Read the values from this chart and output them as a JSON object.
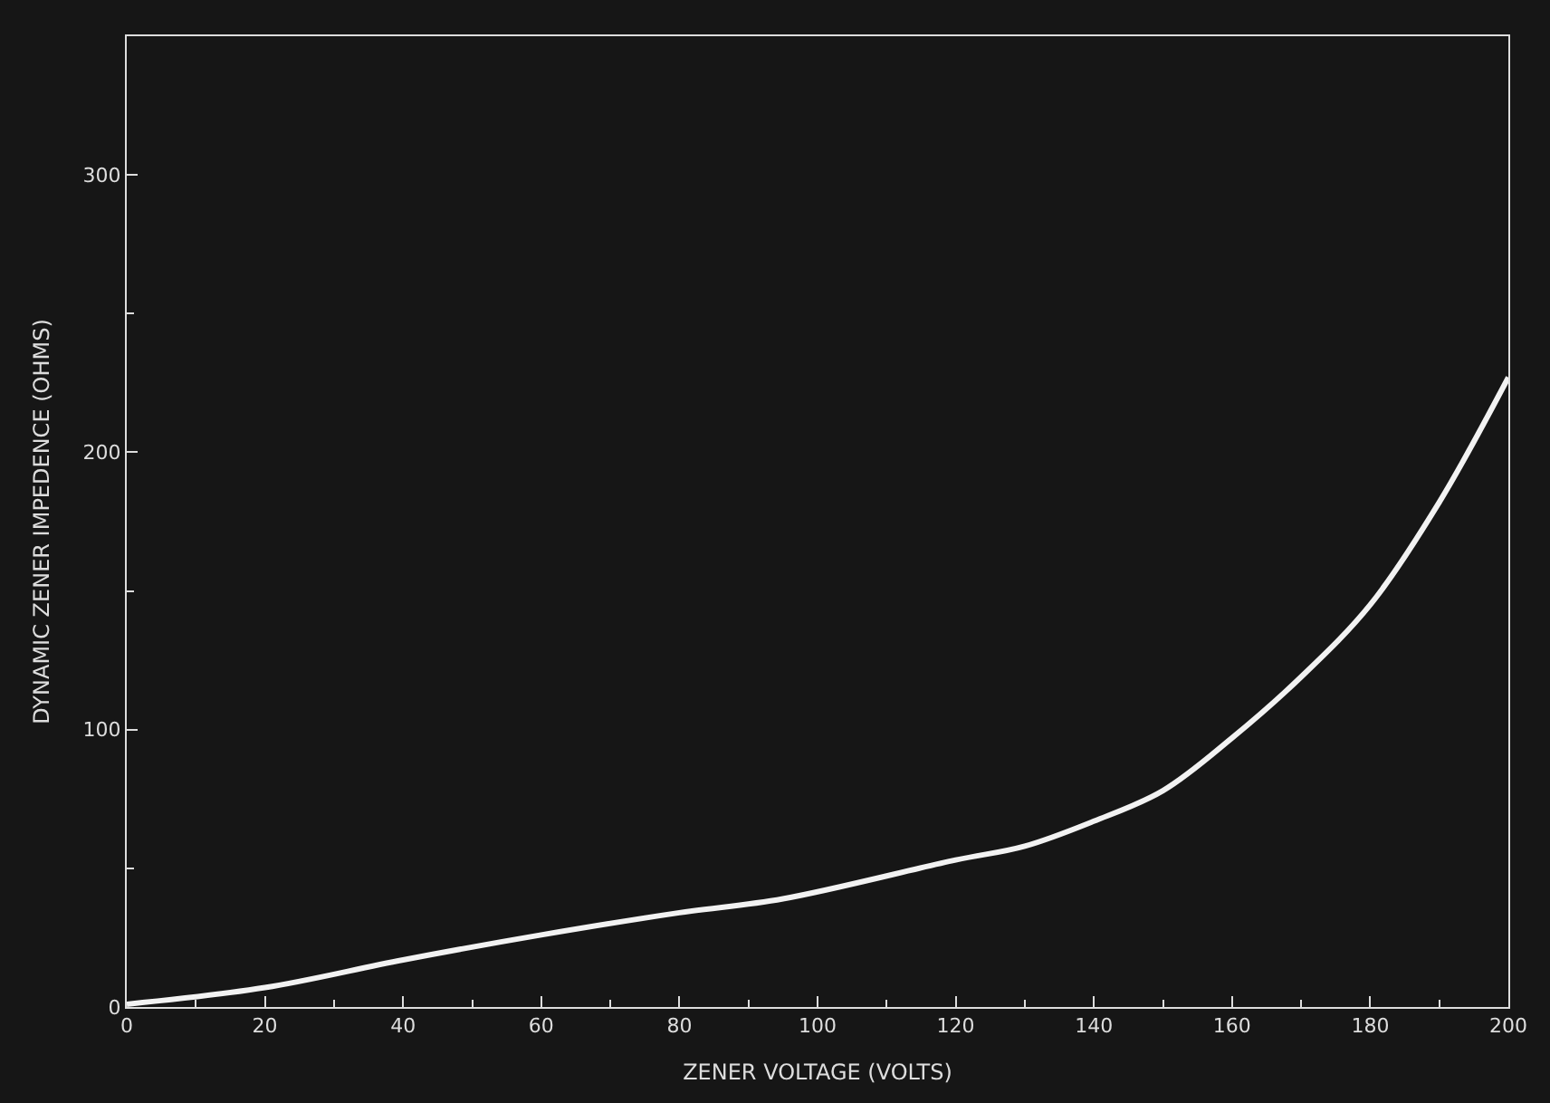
{
  "chart_data": {
    "type": "line",
    "xlabel": "ZENER VOLTAGE (VOLTS)",
    "ylabel": "DYNAMIC ZENER IMPEDENCE (OHMS)",
    "x": [
      0,
      20,
      40,
      60,
      80,
      95,
      120,
      130,
      140,
      150,
      160,
      170,
      180,
      190,
      200
    ],
    "series": [
      {
        "color": "#f2f2f2",
        "values": [
          1,
          7,
          17,
          26,
          34,
          39,
          53,
          58,
          67,
          78,
          97,
          119,
          145,
          182,
          227
        ]
      }
    ],
    "xlim": [
      0,
      200
    ],
    "xticks": [
      0,
      20,
      40,
      60,
      80,
      100,
      120,
      140,
      160,
      180,
      200
    ],
    "ylim": [
      0,
      350
    ],
    "yticks": [
      0,
      100,
      200,
      300
    ],
    "grid": false,
    "legend": false,
    "marker": "none",
    "line_style": "solid"
  }
}
